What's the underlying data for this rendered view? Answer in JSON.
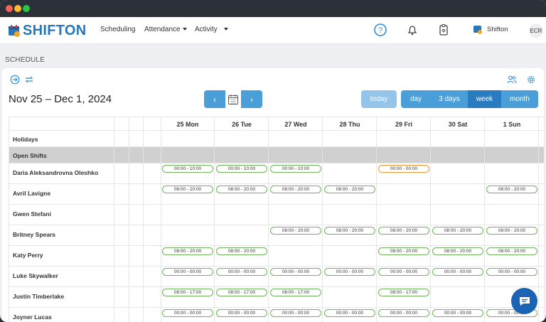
{
  "app": {
    "brand": "SHIFTON"
  },
  "nav": {
    "scheduling": "Scheduling",
    "attendance": "Attendance",
    "activity": "Activity"
  },
  "user": {
    "name": "Shifton",
    "initials": "ECR"
  },
  "page": {
    "section_title": "SCHEDULE",
    "date_range": "Nov 25 – Dec 1, 2024"
  },
  "controls": {
    "prev": "‹",
    "next": "›",
    "today": "today",
    "views": [
      {
        "label": "day",
        "active": false
      },
      {
        "label": "3 days",
        "active": false
      },
      {
        "label": "week",
        "active": true
      },
      {
        "label": "month",
        "active": false
      }
    ]
  },
  "colors": {
    "accent": "#4a9fd8",
    "accent_dark": "#2a7cc0",
    "brand": "#2a77b8",
    "shift_green": "#6db35a",
    "shift_orange": "#f0953a",
    "open_shifts_bg": "#d0d0d0"
  },
  "days": [
    "25 Mon",
    "26 Tue",
    "27 Wed",
    "28 Thu",
    "29 Fri",
    "30 Sat",
    "1 Sun"
  ],
  "rows": [
    {
      "name": "Holidays",
      "type": "holidays",
      "shifts": [
        null,
        null,
        null,
        null,
        null,
        null,
        null
      ]
    },
    {
      "name": "Open Shifts",
      "type": "open",
      "shifts": [
        null,
        null,
        null,
        null,
        null,
        null,
        null
      ]
    },
    {
      "name": "Daria Aleksandrovna Oleshko",
      "type": "employee",
      "shifts": [
        "00:00 - 10:00",
        "00:00 - 10:00",
        "00:00 - 10:00",
        null,
        "00:00 - 00:00",
        null,
        null
      ],
      "orange": [
        4
      ]
    },
    {
      "name": "Avril Lavigne",
      "type": "employee",
      "shifts": [
        "08:00 - 20:00",
        "08:00 - 20:00",
        "08:00 - 20:00",
        "08:00 - 20:00",
        null,
        null,
        "08:00 - 20:00"
      ]
    },
    {
      "name": "Gwen Stefani",
      "type": "employee",
      "shifts": [
        null,
        null,
        null,
        null,
        null,
        null,
        null
      ]
    },
    {
      "name": "Britney Spears",
      "type": "employee",
      "shifts": [
        null,
        null,
        "08:00 - 20:00",
        "08:00 - 20:00",
        "08:00 - 20:00",
        "08:00 - 20:00",
        "08:00 - 20:00"
      ]
    },
    {
      "name": "Katy Perry",
      "type": "employee",
      "shifts": [
        "08:00 - 20:00",
        "08:00 - 20:00",
        null,
        null,
        "08:00 - 20:00",
        "08:00 - 20:00",
        "08:00 - 20:00"
      ]
    },
    {
      "name": "Luke Skywalker",
      "type": "employee",
      "shifts": [
        "00:00 - 00:00",
        "00:00 - 00:00",
        "00:00 - 00:00",
        "00:00 - 00:00",
        "00:00 - 00:00",
        "00:00 - 00:00",
        "00:00 - 00:00"
      ]
    },
    {
      "name": "Justin Timberlake",
      "type": "employee",
      "shifts": [
        "08:00 - 17:00",
        "08:00 - 17:00",
        "08:00 - 17:00",
        null,
        "08:00 - 17:00",
        null,
        null
      ]
    },
    {
      "name": "Joyner Lucas",
      "type": "employee",
      "shifts": [
        "00:00 - 00:00",
        "00:00 - 00:00",
        "00:00 - 00:00",
        "00:00 - 00:00",
        "00:00 - 00:00",
        "00:00 - 00:00",
        "00:00 - 00:00"
      ]
    }
  ]
}
